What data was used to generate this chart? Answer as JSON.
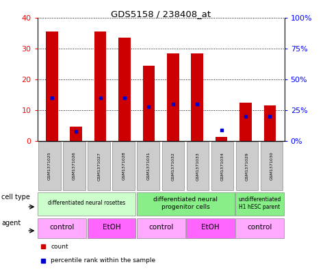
{
  "title": "GDS5158 / 238408_at",
  "samples": [
    "GSM1371025",
    "GSM1371026",
    "GSM1371027",
    "GSM1371028",
    "GSM1371031",
    "GSM1371032",
    "GSM1371033",
    "GSM1371034",
    "GSM1371029",
    "GSM1371030"
  ],
  "counts": [
    35.5,
    4.8,
    35.5,
    33.5,
    24.5,
    28.5,
    28.5,
    1.5,
    12.5,
    11.5
  ],
  "percentiles": [
    35,
    8,
    35,
    35,
    28,
    30,
    30,
    9,
    20,
    20
  ],
  "ylim_left": [
    0,
    40
  ],
  "ylim_right": [
    0,
    100
  ],
  "yticks_left": [
    0,
    10,
    20,
    30,
    40
  ],
  "yticks_right": [
    0,
    25,
    50,
    75,
    100
  ],
  "ytick_labels_right": [
    "0%",
    "25%",
    "50%",
    "75%",
    "100%"
  ],
  "bar_color": "#cc0000",
  "dot_color": "#0000cc",
  "cell_type_groups": [
    {
      "label": "differentiated neural rosettes",
      "start": 0,
      "end": 3,
      "color": "#ccffcc",
      "fontsize": 5.5
    },
    {
      "label": "differentiated neural\nprogenitor cells",
      "start": 4,
      "end": 7,
      "color": "#88ee88",
      "fontsize": 6.5
    },
    {
      "label": "undifferentiated\nH1 hESC parent",
      "start": 8,
      "end": 9,
      "color": "#88ee88",
      "fontsize": 5.5
    }
  ],
  "agent_groups": [
    {
      "label": "control",
      "start": 0,
      "end": 1,
      "color": "#ffaaff"
    },
    {
      "label": "EtOH",
      "start": 2,
      "end": 3,
      "color": "#ff66ff"
    },
    {
      "label": "control",
      "start": 4,
      "end": 5,
      "color": "#ffaaff"
    },
    {
      "label": "EtOH",
      "start": 6,
      "end": 7,
      "color": "#ff66ff"
    },
    {
      "label": "control",
      "start": 8,
      "end": 9,
      "color": "#ffaaff"
    }
  ],
  "sample_box_color": "#cccccc",
  "sample_box_edge": "#888888",
  "bar_color_legend": "#cc0000",
  "dot_color_legend": "#0000cc"
}
